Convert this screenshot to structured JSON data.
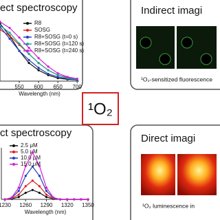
{
  "chart_data": [
    {
      "type": "line",
      "title": "ect spectroscopy",
      "x_label": "Wavelength (nm)",
      "x": [
        500,
        525,
        550,
        575,
        600,
        625,
        650,
        675,
        700
      ],
      "xlim": [
        500,
        705
      ],
      "xticks": [
        550,
        600,
        650,
        700
      ],
      "ylim": [
        0,
        1
      ],
      "series": [
        {
          "name": "R8",
          "color": "#111111",
          "values": [
            0.95,
            0.75,
            0.5,
            0.3,
            0.18,
            0.1,
            0.05,
            0.03,
            0.02
          ]
        },
        {
          "name": "SOSG",
          "color": "#e0201b",
          "values": [
            0.85,
            0.75,
            0.6,
            0.45,
            0.3,
            0.18,
            0.1,
            0.06,
            0.03
          ]
        },
        {
          "name": "R8+SOSG (t=0 s)",
          "color": "#1f3fbf",
          "values": [
            0.9,
            0.7,
            0.5,
            0.35,
            0.22,
            0.12,
            0.07,
            0.04,
            0.02
          ]
        },
        {
          "name": "R8+SOSG (t=120 s)",
          "color": "#18a39a",
          "values": [
            0.92,
            0.8,
            0.62,
            0.45,
            0.3,
            0.18,
            0.1,
            0.05,
            0.03
          ]
        },
        {
          "name": "R8+SOSG (t=240 s)",
          "color": "#d21fd2",
          "values": [
            0.98,
            0.88,
            0.72,
            0.55,
            0.38,
            0.24,
            0.13,
            0.07,
            0.04
          ]
        }
      ]
    },
    {
      "type": "line",
      "title": "ct spectroscopy",
      "x_label": "Wavelength (nm)",
      "x": [
        1230,
        1240,
        1250,
        1260,
        1270,
        1280,
        1290,
        1300,
        1310,
        1320,
        1330,
        1340,
        1350
      ],
      "xlim": [
        1225,
        1352
      ],
      "xticks": [
        1230,
        1260,
        1290,
        1320,
        1350
      ],
      "ylim": [
        0,
        1.1
      ],
      "series": [
        {
          "name": "2.5 μM",
          "color": "#111111",
          "values": [
            0,
            0.01,
            0.05,
            0.14,
            0.2,
            0.14,
            0.05,
            0.01,
            0,
            0,
            0,
            0,
            0
          ]
        },
        {
          "name": "5.0 μM",
          "color": "#e0201b",
          "values": [
            0,
            0.02,
            0.1,
            0.28,
            0.4,
            0.28,
            0.1,
            0.02,
            0,
            0,
            0,
            0,
            0
          ]
        },
        {
          "name": "10.0 μM",
          "color": "#1f3fbf",
          "values": [
            0,
            0.03,
            0.18,
            0.5,
            0.7,
            0.5,
            0.18,
            0.03,
            0,
            0,
            0,
            0,
            0
          ]
        },
        {
          "name": "15.0 μM",
          "color": "#d21fd2",
          "values": [
            0,
            0.04,
            0.25,
            0.71,
            1.0,
            0.71,
            0.25,
            0.04,
            0,
            0,
            0,
            0,
            0
          ]
        }
      ]
    }
  ],
  "panels": {
    "indirect_imaging": {
      "title": "Indirect imagi",
      "caption": "¹O₂-sensitized fluorescence"
    },
    "direct_imaging": {
      "title": "Direct imagi",
      "caption": "¹O₂ luminescence in"
    },
    "center": {
      "label": "¹O₂"
    }
  }
}
